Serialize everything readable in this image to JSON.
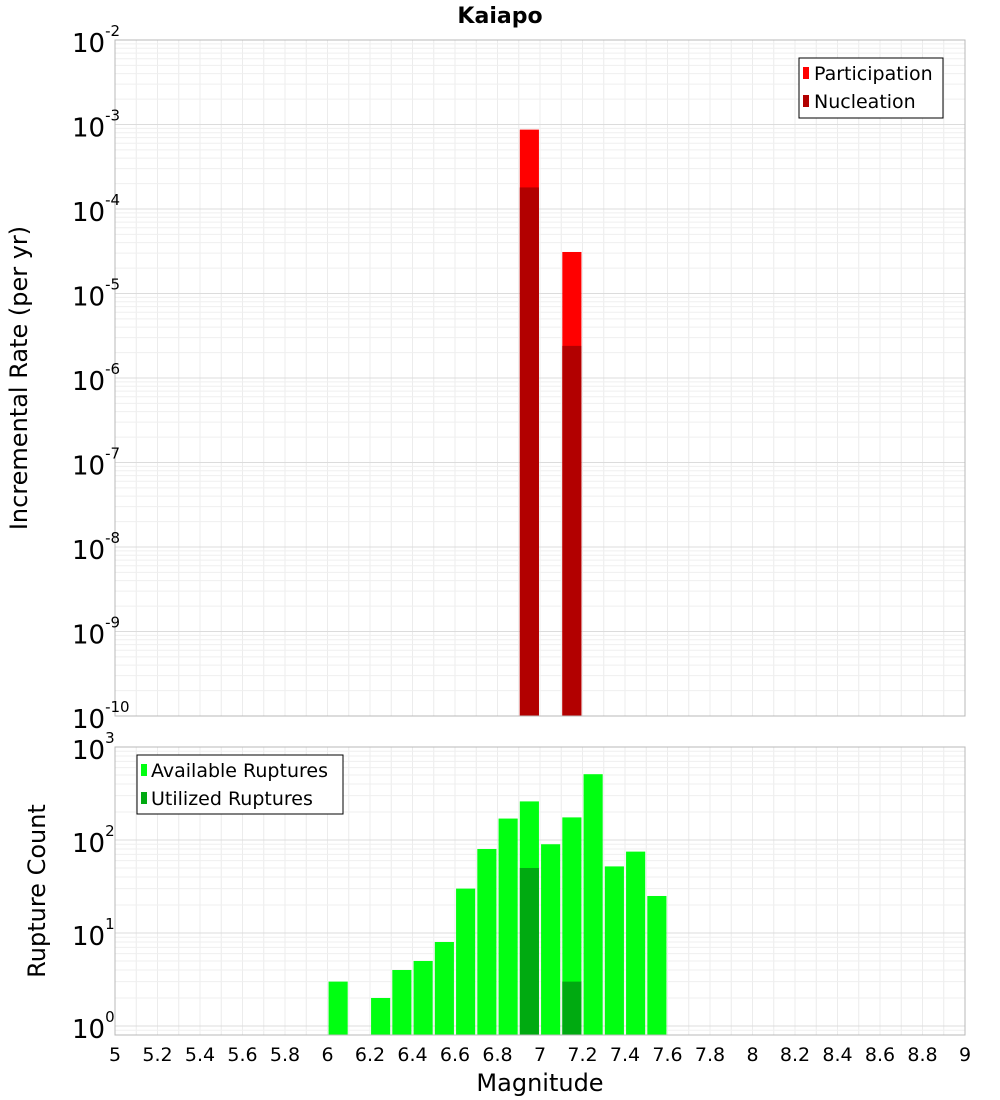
{
  "chart_data": [
    {
      "type": "bar",
      "title": "Kaiapo",
      "ylabel": "Incremental Rate (per yr)",
      "yscale": "log",
      "ylim": [
        1e-10,
        0.01
      ],
      "xlim": [
        5,
        9
      ],
      "y_tick_exponents": [
        "-10",
        "-9",
        "-8",
        "-7",
        "-6",
        "-5",
        "-4",
        "-3",
        "-2"
      ],
      "y_tick_base": "10",
      "grid": true,
      "legend_position": "top-right",
      "bar_width": 0.09,
      "series": [
        {
          "name": "Participation",
          "color": "#ff0000",
          "x": [
            6.95,
            7.15
          ],
          "values": [
            0.00087,
            3.1e-05
          ]
        },
        {
          "name": "Nucleation",
          "color": "#b20000",
          "x": [
            6.95,
            7.15
          ],
          "values": [
            0.00018,
            2.4e-06
          ]
        }
      ]
    },
    {
      "type": "bar",
      "xlabel": "Magnitude",
      "ylabel": "Rupture Count",
      "yscale": "log",
      "ylim": [
        0.8,
        1000
      ],
      "xlim": [
        5,
        9
      ],
      "y_tick_exponents": [
        "0",
        "1",
        "2",
        "3"
      ],
      "y_tick_base": "10",
      "x_ticks": [
        "5",
        "5.2",
        "5.4",
        "5.6",
        "5.8",
        "6",
        "6.2",
        "6.4",
        "6.6",
        "6.8",
        "7",
        "7.2",
        "7.4",
        "7.6",
        "7.8",
        "8",
        "8.2",
        "8.4",
        "8.6",
        "8.8",
        "9"
      ],
      "grid": true,
      "legend_position": "top-left",
      "bar_width": 0.09,
      "series": [
        {
          "name": "Available Ruptures",
          "color": "#00ff11",
          "x": [
            6.05,
            6.25,
            6.35,
            6.45,
            6.55,
            6.65,
            6.75,
            6.85,
            6.95,
            7.05,
            7.15,
            7.25,
            7.35,
            7.45,
            7.55
          ],
          "values": [
            3,
            2,
            4,
            5,
            8,
            30,
            80,
            170,
            260,
            90,
            175,
            510,
            52,
            75,
            25
          ]
        },
        {
          "name": "Utilized Ruptures",
          "color": "#00aa11",
          "x": [
            6.95,
            7.15
          ],
          "values": [
            50,
            3
          ]
        }
      ]
    }
  ]
}
